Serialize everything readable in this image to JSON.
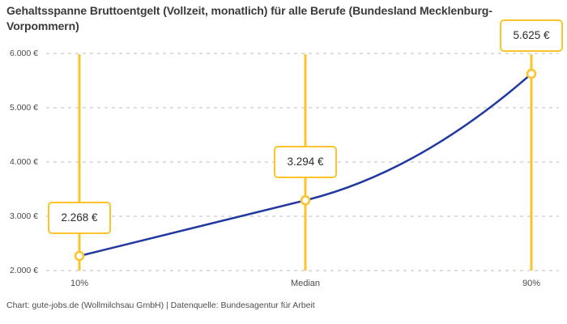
{
  "title": "Gehaltsspanne Bruttoentgelt (Vollzeit, monatlich) für alle Berufe (Bundesland Mecklenburg-Vorpommern)",
  "footer": "Chart: gute-jobs.de (Wollmilchsau GmbH) | Datenquelle: Bundesagentur für Arbeit",
  "colors": {
    "accent_yellow": "#FAC42A",
    "line_blue": "#2038A0",
    "grid": "#C9C9C9",
    "title_text": "#3A3A3A",
    "axis_text": "#4A4A4A",
    "box_text": "#2B2B2B",
    "box_bg": "#FFFFFF"
  },
  "chart_data": {
    "type": "line",
    "title": "Gehaltsspanne Bruttoentgelt (Vollzeit, monatlich) für alle Berufe (Bundesland Mecklenburg-Vorpommern)",
    "categories": [
      "10%",
      "Median",
      "90%"
    ],
    "values": [
      2268,
      3294,
      5625
    ],
    "value_labels": [
      "2.268 €",
      "3.294 €",
      "5.625 €"
    ],
    "xlabel": "",
    "ylabel": "",
    "ylim": [
      2000,
      6000
    ],
    "y_ticks": [
      {
        "label": "6.000 €",
        "value": 6000
      },
      {
        "label": "5.000 €",
        "value": 5000
      },
      {
        "label": "4.000 €",
        "value": 4000
      },
      {
        "label": "3.000 €",
        "value": 3000
      },
      {
        "label": "2.000 €",
        "value": 2000
      }
    ],
    "grid": "horizontal-dashed",
    "legend": "none",
    "annotations": "vertical highlight line at each category; open-circle marker and bordered value-label box above each data point"
  }
}
